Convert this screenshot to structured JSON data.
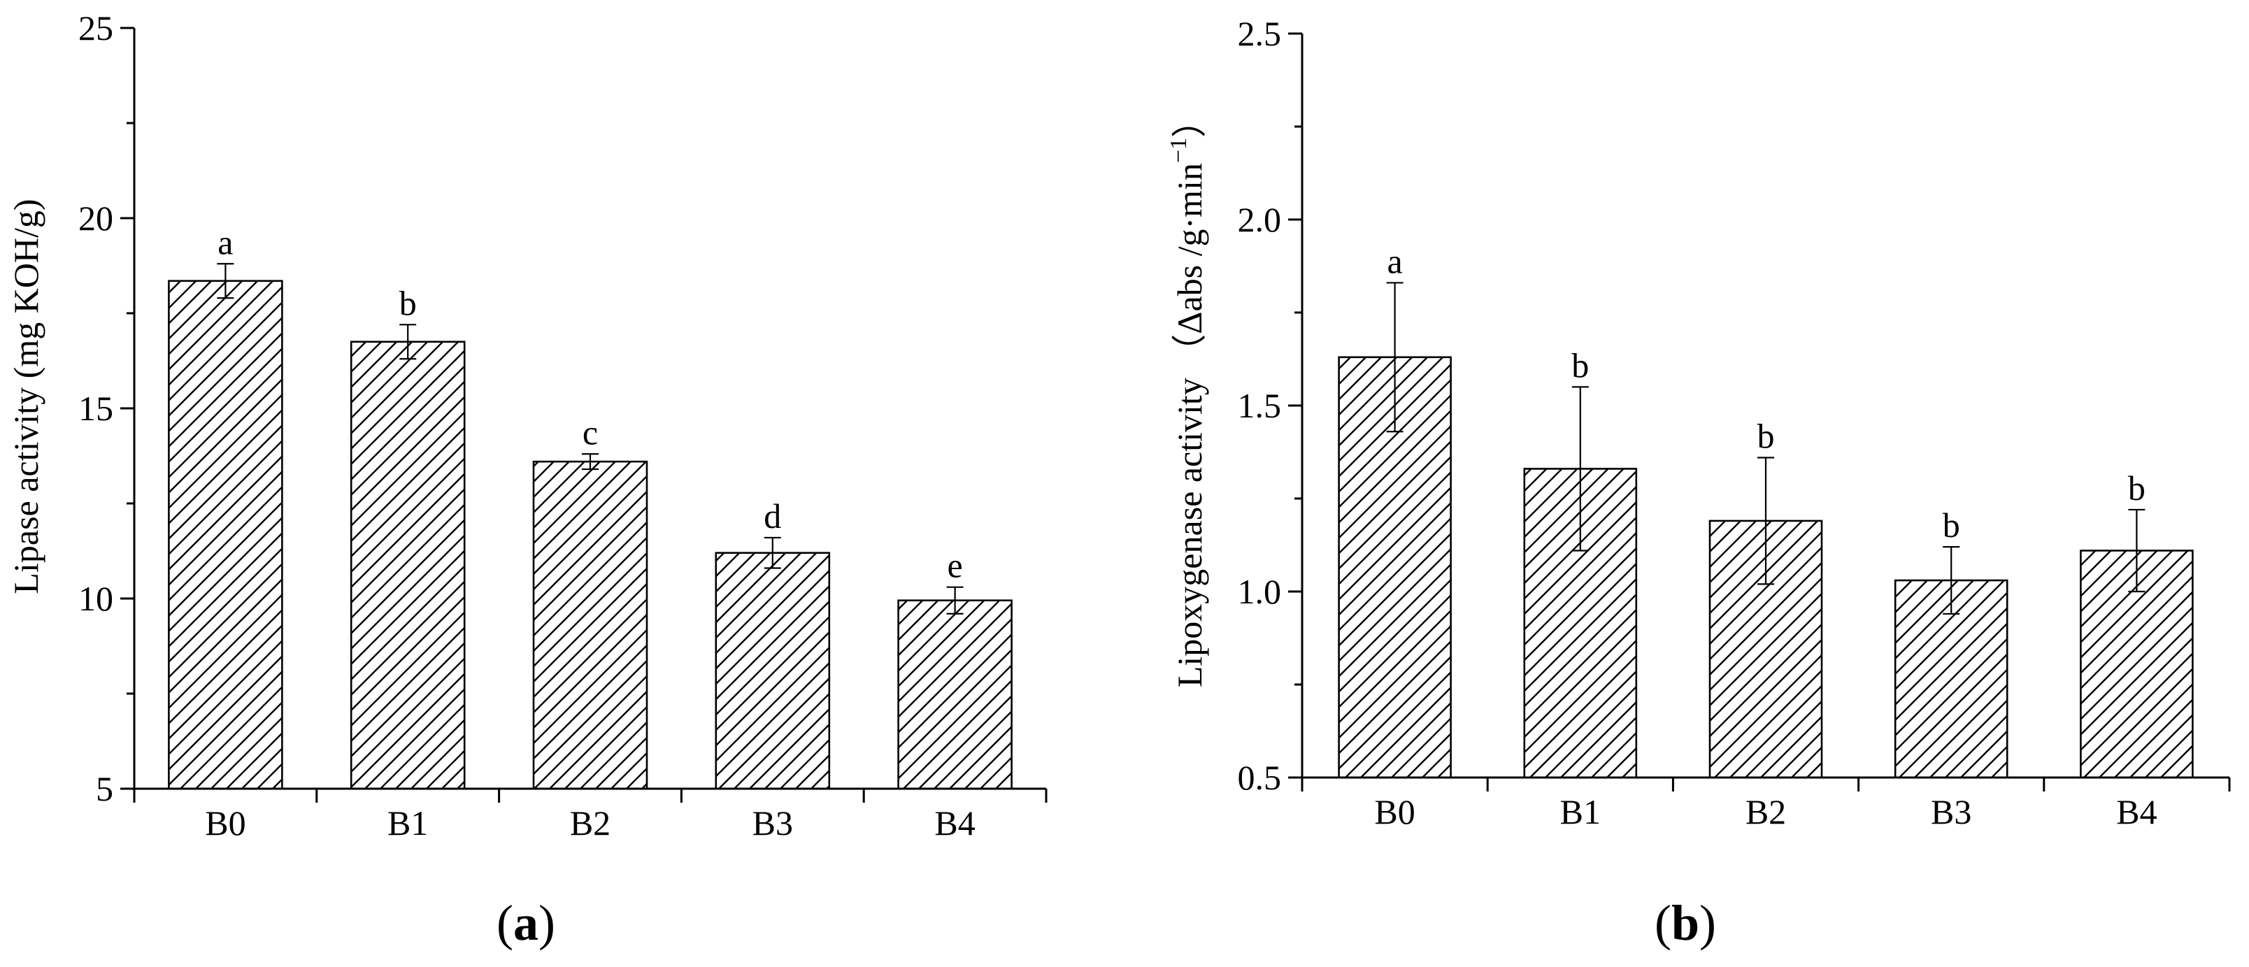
{
  "colors": {
    "ink": "#000000",
    "bar_fill": "#ffffff",
    "hatch": "#000000"
  },
  "chart_data": [
    {
      "type": "bar",
      "panel_label": "a",
      "title": "",
      "xlabel": "",
      "ylabel": "Lipase activity (mg KOH/g)",
      "categories": [
        "B0",
        "B1",
        "B2",
        "B3",
        "B4"
      ],
      "values": [
        18.35,
        16.75,
        13.6,
        11.2,
        9.95
      ],
      "errors": [
        0.45,
        0.45,
        0.2,
        0.4,
        0.35
      ],
      "significance": [
        "a",
        "b",
        "c",
        "d",
        "e"
      ],
      "ylim": [
        5,
        25
      ],
      "yticks": [
        5,
        10,
        15,
        20,
        25
      ],
      "ytick_labels": [
        "5",
        "10",
        "15",
        "20",
        "25"
      ],
      "pattern": "diagonal-hatch",
      "grid": false,
      "legend": "none"
    },
    {
      "type": "bar",
      "panel_label": "b",
      "title": "",
      "xlabel": "",
      "ylabel": "Lipoxygenase activity （Δabs /g·min",
      "ylabel_superscript": "−1",
      "ylabel_close": "）",
      "categories": [
        "B0",
        "B1",
        "B2",
        "B3",
        "B4"
      ],
      "values": [
        1.63,
        1.33,
        1.19,
        1.03,
        1.11
      ],
      "errors": [
        0.2,
        0.22,
        0.17,
        0.09,
        0.11
      ],
      "significance": [
        "a",
        "b",
        "b",
        "b",
        "b"
      ],
      "ylim": [
        0.5,
        2.5
      ],
      "yticks": [
        0.5,
        1.0,
        1.5,
        2.0,
        2.5
      ],
      "ytick_labels": [
        "0.5",
        "1.0",
        "1.5",
        "2.0",
        "2.5"
      ],
      "pattern": "diagonal-hatch",
      "grid": false,
      "legend": "none"
    }
  ]
}
